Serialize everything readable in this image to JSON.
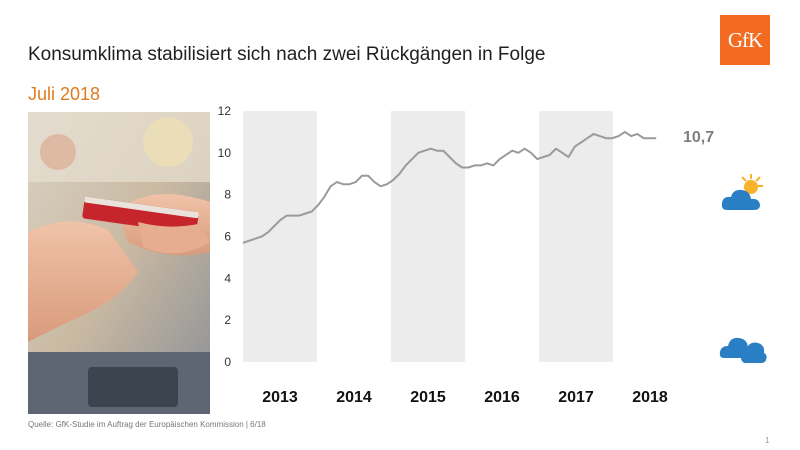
{
  "header": {
    "title": "Konsumklima stabilisiert sich nach zwei Rückgängen in Folge",
    "subtitle": "Juli 2018",
    "logo_text": "GfK"
  },
  "colors": {
    "accent": "#e07b1d",
    "logo": "#f26b21",
    "line": "#9a9a9a",
    "band": "#ececec",
    "icon_blue": "#2a7fc4",
    "sun": "#f7b32b"
  },
  "icons": {
    "good_outlook": "sun-cloud-icon",
    "bad_outlook": "clouds-icon",
    "photo": "credit-card-photo"
  },
  "chart_data": {
    "type": "line",
    "title": "",
    "xlabel": "",
    "ylabel": "",
    "ylim": [
      0,
      12
    ],
    "yticks": [
      "0",
      "2",
      "4",
      "6",
      "8",
      "10",
      "12"
    ],
    "year_labels": [
      "2013",
      "2014",
      "2015",
      "2016",
      "2017",
      "2018"
    ],
    "last_value_label": "10,7",
    "grid": false,
    "series": [
      {
        "values": [
          5.7,
          5.8,
          5.9,
          6.0,
          6.2,
          6.5,
          6.8,
          7.0,
          7.0,
          7.0,
          7.1,
          7.2,
          7.5,
          7.9,
          8.4,
          8.6,
          8.5,
          8.5,
          8.6,
          8.9,
          8.9,
          8.6,
          8.4,
          8.5,
          8.7,
          9.0,
          9.4,
          9.7,
          10.0,
          10.1,
          10.2,
          10.1,
          10.1,
          9.8,
          9.5,
          9.3,
          9.3,
          9.4,
          9.4,
          9.5,
          9.4,
          9.7,
          9.9,
          10.1,
          10.0,
          10.2,
          10.0,
          9.7,
          9.8,
          9.9,
          10.2,
          10.0,
          9.8,
          10.3,
          10.5,
          10.7,
          10.9,
          10.8,
          10.7,
          10.7,
          10.8,
          11.0,
          10.8,
          10.9,
          10.7,
          10.7,
          10.7
        ]
      }
    ]
  },
  "footer": {
    "source": "Quelle: GfK-Studie im Auftrag der Europäischen Kommission | 6/18",
    "page": "1"
  }
}
